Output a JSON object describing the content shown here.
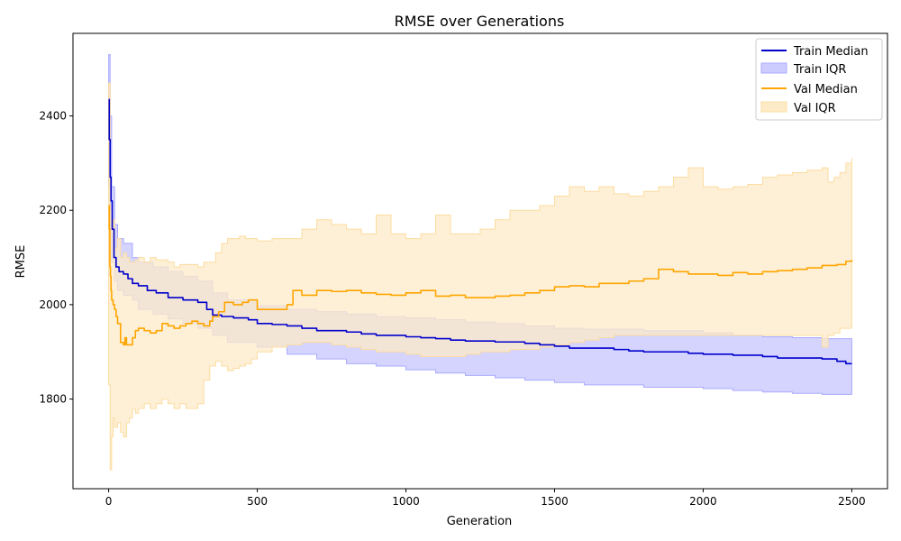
{
  "chart_data": {
    "type": "line",
    "title": "RMSE over Generations",
    "xlabel": "Generation",
    "ylabel": "RMSE",
    "xlim": [
      -120,
      2620
    ],
    "ylim": [
      1610,
      2575
    ],
    "xticks": [
      0,
      500,
      1000,
      1500,
      2000,
      2500
    ],
    "yticks": [
      1800,
      2000,
      2200,
      2400
    ],
    "grid": false,
    "legend_position": "top-right",
    "colors": {
      "train_line": "#0000cc",
      "train_fill": "#ccccff",
      "train_fill_edge": "#aaaaff",
      "val_line": "#ffa500",
      "val_fill": "#fdebc8",
      "val_fill_edge": "#fcdca0"
    },
    "legend": [
      "Train Median",
      "Train IQR",
      "Val Median",
      "Val IQR"
    ],
    "series": [
      {
        "name": "Train Median",
        "kind": "line",
        "step": true,
        "x": [
          0,
          2,
          5,
          8,
          12,
          18,
          25,
          35,
          50,
          65,
          80,
          100,
          130,
          160,
          200,
          250,
          300,
          330,
          350,
          380,
          420,
          470,
          500,
          550,
          600,
          650,
          700,
          800,
          850,
          900,
          1000,
          1050,
          1100,
          1150,
          1200,
          1300,
          1400,
          1450,
          1500,
          1550,
          1700,
          1750,
          1800,
          1950,
          2000,
          2100,
          2200,
          2250,
          2400,
          2450,
          2480,
          2500
        ],
        "y": [
          2435,
          2350,
          2270,
          2220,
          2160,
          2100,
          2080,
          2070,
          2065,
          2055,
          2045,
          2040,
          2030,
          2025,
          2015,
          2010,
          2005,
          1990,
          1978,
          1975,
          1972,
          1968,
          1960,
          1958,
          1955,
          1950,
          1945,
          1942,
          1938,
          1935,
          1932,
          1930,
          1928,
          1925,
          1923,
          1921,
          1918,
          1915,
          1912,
          1908,
          1905,
          1902,
          1900,
          1897,
          1895,
          1893,
          1890,
          1887,
          1885,
          1880,
          1875,
          1875
        ]
      },
      {
        "name": "Train IQR",
        "kind": "band",
        "x": [
          0,
          5,
          10,
          20,
          30,
          50,
          80,
          100,
          150,
          200,
          250,
          300,
          350,
          400,
          500,
          600,
          700,
          800,
          900,
          1000,
          1100,
          1200,
          1300,
          1400,
          1500,
          1600,
          1800,
          2000,
          2100,
          2200,
          2300,
          2400,
          2500
        ],
        "low": [
          2360,
          2250,
          2150,
          2090,
          2050,
          2030,
          2020,
          2010,
          1990,
          1980,
          1970,
          1960,
          1950,
          1935,
          1920,
          1910,
          1895,
          1885,
          1875,
          1870,
          1862,
          1855,
          1850,
          1845,
          1840,
          1835,
          1830,
          1825,
          1822,
          1818,
          1815,
          1812,
          1810
        ],
        "high": [
          2530,
          2400,
          2250,
          2170,
          2140,
          2130,
          2100,
          2090,
          2080,
          2070,
          2060,
          2050,
          2025,
          2010,
          1998,
          1990,
          1985,
          1980,
          1975,
          1972,
          1968,
          1963,
          1960,
          1955,
          1950,
          1948,
          1945,
          1940,
          1935,
          1932,
          1930,
          1928,
          1925
        ]
      },
      {
        "name": "Val Median",
        "kind": "line",
        "step": true,
        "x": [
          0,
          2,
          4,
          6,
          8,
          10,
          15,
          20,
          25,
          30,
          40,
          50,
          55,
          60,
          70,
          80,
          90,
          100,
          120,
          140,
          160,
          180,
          200,
          220,
          240,
          260,
          280,
          300,
          320,
          340,
          350,
          370,
          390,
          420,
          450,
          470,
          500,
          550,
          600,
          620,
          650,
          700,
          750,
          800,
          850,
          900,
          950,
          1000,
          1050,
          1100,
          1150,
          1200,
          1250,
          1300,
          1350,
          1400,
          1450,
          1500,
          1550,
          1600,
          1650,
          1700,
          1750,
          1800,
          1850,
          1900,
          1950,
          2000,
          2050,
          2100,
          2150,
          2200,
          2250,
          2300,
          2350,
          2400,
          2450,
          2480,
          2500
        ],
        "y": [
          2210,
          2160,
          2080,
          2060,
          2030,
          2010,
          2000,
          1990,
          1975,
          1960,
          1920,
          1915,
          1930,
          1915,
          1915,
          1930,
          1945,
          1950,
          1945,
          1940,
          1945,
          1960,
          1955,
          1950,
          1955,
          1960,
          1965,
          1960,
          1955,
          1965,
          1975,
          1985,
          2005,
          2000,
          2005,
          2010,
          1990,
          1990,
          2000,
          2030,
          2020,
          2030,
          2028,
          2030,
          2025,
          2022,
          2020,
          2025,
          2030,
          2018,
          2020,
          2015,
          2015,
          2018,
          2020,
          2025,
          2030,
          2038,
          2040,
          2038,
          2045,
          2045,
          2050,
          2055,
          2075,
          2070,
          2065,
          2065,
          2062,
          2068,
          2065,
          2070,
          2072,
          2075,
          2078,
          2083,
          2085,
          2092,
          2095
        ]
      },
      {
        "name": "Val IQR",
        "kind": "band",
        "x": [
          0,
          5,
          10,
          15,
          20,
          30,
          40,
          50,
          60,
          70,
          80,
          90,
          100,
          120,
          140,
          160,
          180,
          200,
          220,
          240,
          260,
          280,
          300,
          320,
          340,
          360,
          380,
          400,
          420,
          440,
          460,
          480,
          500,
          550,
          600,
          650,
          700,
          750,
          800,
          850,
          900,
          950,
          1000,
          1050,
          1100,
          1150,
          1200,
          1250,
          1300,
          1350,
          1400,
          1450,
          1500,
          1550,
          1600,
          1650,
          1700,
          1750,
          1800,
          1850,
          1900,
          1950,
          2000,
          2050,
          2100,
          2150,
          2200,
          2250,
          2300,
          2350,
          2400,
          2420,
          2440,
          2460,
          2480,
          2500
        ],
        "low": [
          1980,
          1830,
          1650,
          1720,
          1760,
          1740,
          1750,
          1730,
          1720,
          1750,
          1760,
          1780,
          1770,
          1780,
          1790,
          1780,
          1790,
          1800,
          1790,
          1780,
          1790,
          1780,
          1780,
          1790,
          1840,
          1870,
          1880,
          1870,
          1860,
          1865,
          1870,
          1875,
          1885,
          1900,
          1910,
          1915,
          1920,
          1920,
          1915,
          1910,
          1905,
          1900,
          1900,
          1895,
          1890,
          1890,
          1890,
          1895,
          1900,
          1900,
          1905,
          1905,
          1910,
          1915,
          1920,
          1925,
          1930,
          1935,
          1935,
          1935,
          1935,
          1935,
          1935,
          1935,
          1935,
          1935,
          1935,
          1935,
          1935,
          1935,
          1935,
          1910,
          1935,
          1940,
          1950,
          1950
        ],
        "high": [
          2470,
          2200,
          2160,
          2180,
          2120,
          2140,
          2100,
          2110,
          2100,
          2090,
          2090,
          2095,
          2100,
          2090,
          2100,
          2095,
          2095,
          2090,
          2080,
          2085,
          2085,
          2085,
          2080,
          2090,
          2090,
          2110,
          2130,
          2140,
          2140,
          2145,
          2140,
          2140,
          2135,
          2140,
          2140,
          2160,
          2180,
          2170,
          2160,
          2150,
          2190,
          2150,
          2140,
          2150,
          2190,
          2150,
          2150,
          2160,
          2180,
          2200,
          2200,
          2210,
          2230,
          2250,
          2240,
          2250,
          2235,
          2230,
          2240,
          2250,
          2270,
          2290,
          2250,
          2245,
          2250,
          2255,
          2270,
          2275,
          2280,
          2285,
          2290,
          2260,
          2270,
          2280,
          2300,
          2310
        ]
      }
    ]
  }
}
